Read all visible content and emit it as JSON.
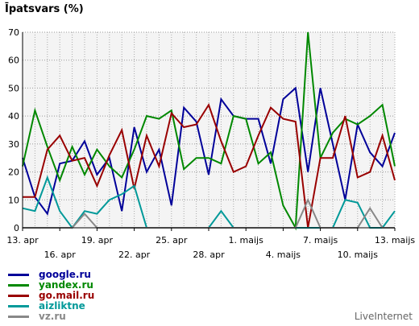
{
  "chart_data": {
    "type": "line",
    "title": "Īpatsvars (%)",
    "ylim": [
      0,
      70
    ],
    "yticks": [
      0,
      10,
      20,
      30,
      40,
      50,
      60,
      70
    ],
    "grid": true,
    "legend_position": "bottom-left",
    "x_tick_labels": [
      {
        "label": "13. apr",
        "index": 0,
        "row": 1
      },
      {
        "label": "16. apr",
        "index": 3,
        "row": 2
      },
      {
        "label": "19. apr",
        "index": 6,
        "row": 1
      },
      {
        "label": "22. apr",
        "index": 9,
        "row": 2
      },
      {
        "label": "25. apr",
        "index": 12,
        "row": 1
      },
      {
        "label": "28. apr",
        "index": 15,
        "row": 2
      },
      {
        "label": "1. maijs",
        "index": 18,
        "row": 1
      },
      {
        "label": "4. maijs",
        "index": 21,
        "row": 2
      },
      {
        "label": "7. maijs",
        "index": 24,
        "row": 1
      },
      {
        "label": "10. maijs",
        "index": 27,
        "row": 2
      },
      {
        "label": "13. maijs",
        "index": 30,
        "row": 1
      }
    ],
    "series": [
      {
        "name": "google.ru",
        "color": "#000099",
        "values": [
          25,
          11,
          5,
          23,
          24,
          31,
          19,
          25,
          6,
          36,
          20,
          28,
          8,
          43,
          38,
          19,
          46,
          40,
          39,
          39,
          23,
          46,
          50,
          20,
          50,
          30,
          10,
          37,
          27,
          22,
          34
        ]
      },
      {
        "name": "yandex.ru",
        "color": "#008800",
        "values": [
          22,
          42,
          29,
          17,
          29,
          19,
          28,
          22,
          18,
          28,
          40,
          39,
          42,
          21,
          25,
          25,
          23,
          40,
          39,
          23,
          27,
          8,
          0,
          70,
          25,
          34,
          39,
          37,
          40,
          44,
          22
        ]
      },
      {
        "name": "go.mail.ru",
        "color": "#990000",
        "values": [
          11,
          11,
          28,
          33,
          24,
          25,
          15,
          26,
          35,
          14,
          33,
          22,
          41,
          36,
          37,
          44,
          31,
          20,
          22,
          33,
          43,
          39,
          38,
          0,
          25,
          25,
          40,
          18,
          20,
          33,
          17
        ]
      },
      {
        "name": "aizliktne",
        "color": "#009999",
        "values": [
          7,
          6,
          18,
          6,
          0,
          6,
          5,
          10,
          12,
          15,
          0,
          0,
          0,
          0,
          0,
          0,
          6,
          0,
          0,
          0,
          0,
          0,
          0,
          0,
          0,
          0,
          10,
          9,
          0,
          0,
          6
        ]
      },
      {
        "name": "vz.ru",
        "color": "#888888",
        "values": [
          0,
          0,
          0,
          0,
          0,
          5,
          0,
          0,
          0,
          0,
          0,
          0,
          0,
          0,
          0,
          0,
          0,
          0,
          0,
          0,
          0,
          0,
          0,
          10,
          0,
          0,
          0,
          0,
          7,
          0,
          0
        ]
      }
    ]
  },
  "brand": "LiveInternet"
}
